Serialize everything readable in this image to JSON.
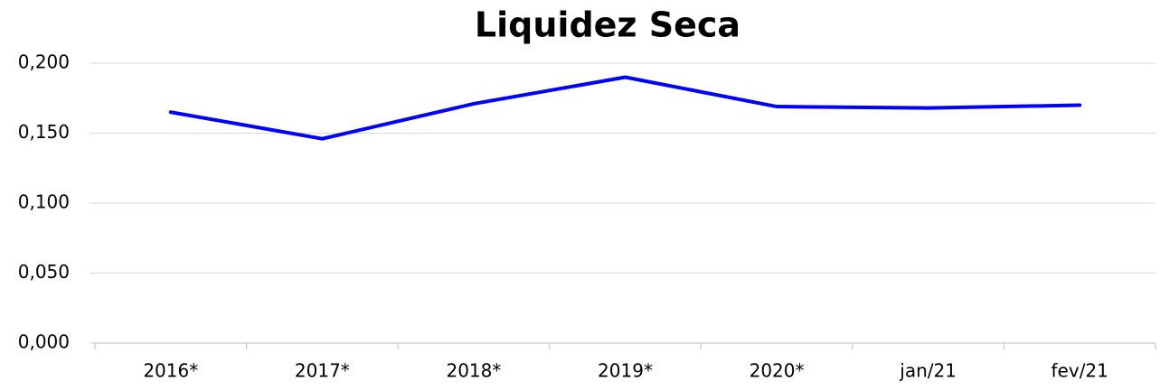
{
  "chart_data": {
    "type": "line",
    "title": "Liquidez Seca",
    "categories": [
      "2016*",
      "2017*",
      "2018*",
      "2019*",
      "2020*",
      "jan/21",
      "fev/21"
    ],
    "series": [
      {
        "name": "Liquidez Seca",
        "color": "#0000ff",
        "values": [
          0.165,
          0.146,
          0.171,
          0.19,
          0.169,
          0.168,
          0.17
        ]
      }
    ],
    "ylim": [
      0,
      0.2
    ],
    "yticks": [
      {
        "value": 0,
        "label": "0,000"
      },
      {
        "value": 0.05,
        "label": "0,050"
      },
      {
        "value": 0.1,
        "label": "0,100"
      },
      {
        "value": 0.15,
        "label": "0,150"
      },
      {
        "value": 0.2,
        "label": "0,200"
      }
    ],
    "grid": true
  }
}
